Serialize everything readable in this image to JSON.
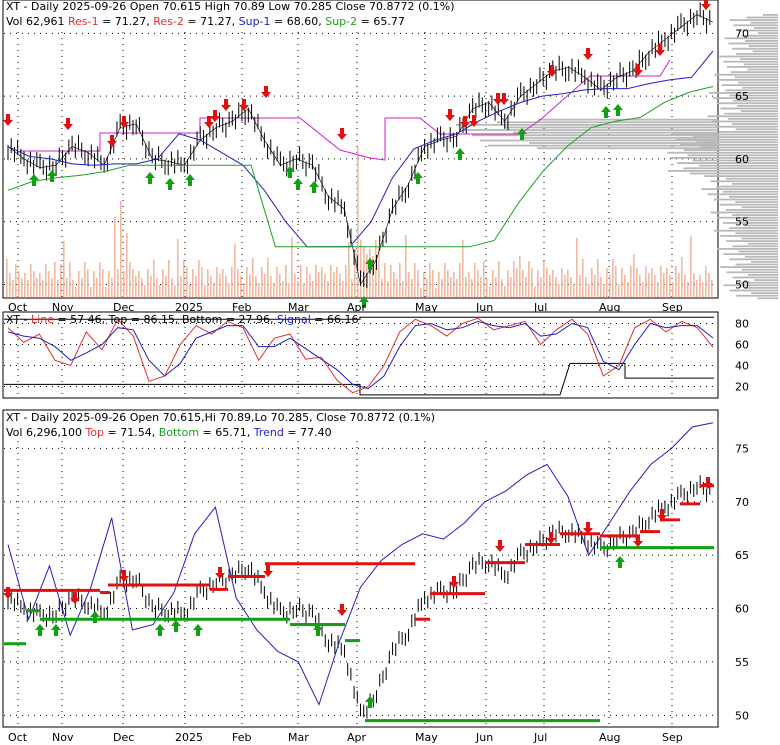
{
  "panel1": {
    "header_line1": [
      {
        "text": "XT - Daily 2025-09-26 Open 70.615  High 70.89  Low 70.285  Close 70.8772 (0.1%)",
        "color": "#000000"
      }
    ],
    "header_line2": [
      {
        "text": "Vol 62,961 ",
        "color": "#000000"
      },
      {
        "text": "Res-1",
        "color": "#e03030"
      },
      {
        "text": " = 71.27, ",
        "color": "#000000"
      },
      {
        "text": "Res-2",
        "color": "#e03030"
      },
      {
        "text": " = 71.27, ",
        "color": "#000000"
      },
      {
        "text": "Sup-1",
        "color": "#2020c0"
      },
      {
        "text": " = 68.60, ",
        "color": "#000000"
      },
      {
        "text": "Sup-2",
        "color": "#20a020"
      },
      {
        "text": " = 65.77",
        "color": "#000000"
      }
    ],
    "y_ticks": [
      "70",
      "65",
      "60",
      "55",
      "50"
    ],
    "y_values": [
      70,
      65,
      60,
      55,
      50
    ],
    "x_ticks": [
      "Oct",
      "Nov",
      "Dec",
      "2025",
      "Feb",
      "Mar",
      "Apr",
      "May",
      "Jun",
      "Jul",
      "Aug",
      "Sep"
    ]
  },
  "panel2": {
    "header": [
      {
        "text": "XT - ",
        "color": "#000000"
      },
      {
        "text": "Line",
        "color": "#e03030"
      },
      {
        "text": " = 57.46, ",
        "color": "#000000"
      },
      {
        "text": "Top",
        "color": "#000000"
      },
      {
        "text": " = 86.15, ",
        "color": "#000000"
      },
      {
        "text": "Bottom",
        "color": "#000000"
      },
      {
        "text": " = 27.96, ",
        "color": "#000000"
      },
      {
        "text": "Signal",
        "color": "#2020c0"
      },
      {
        "text": " = 66.16",
        "color": "#000000"
      }
    ],
    "y_ticks": [
      "80",
      "60",
      "40",
      "20"
    ],
    "y_values": [
      80,
      60,
      40,
      20
    ]
  },
  "panel3": {
    "header_line1": [
      {
        "text": "XT - Daily 2025-09-26 Open 70.615,Hi 70.89,Lo 70.285,  Close 70.8772 (0.1%)",
        "color": "#000000"
      }
    ],
    "header_line2": [
      {
        "text": "Vol 6,296,100 ",
        "color": "#000000"
      },
      {
        "text": "Top",
        "color": "#e03030"
      },
      {
        "text": " = 71.54, ",
        "color": "#000000"
      },
      {
        "text": "Bottom",
        "color": "#20a020"
      },
      {
        "text": " = 65.71, ",
        "color": "#000000"
      },
      {
        "text": "Trend",
        "color": "#2020c0"
      },
      {
        "text": " = 77.40",
        "color": "#000000"
      }
    ],
    "y_ticks": [
      "75",
      "70",
      "65",
      "60",
      "55",
      "50"
    ],
    "y_values": [
      75,
      70,
      65,
      60,
      55,
      50
    ],
    "x_ticks": [
      "Oct",
      "Nov",
      "Dec",
      "2025",
      "Feb",
      "Mar",
      "Apr",
      "May",
      "Jun",
      "Jul",
      "Aug",
      "Sep"
    ]
  },
  "chart_data": [
    {
      "type": "line",
      "title": "XT - Daily 2025-09-26 Open 70.615  High 70.89  Low 70.285  Close 70.8772 (0.1%)",
      "x_labels": [
        "Oct",
        "Nov",
        "Dec",
        "2025",
        "Feb",
        "Mar",
        "Apr",
        "May",
        "Jun",
        "Jul",
        "Aug",
        "Sep"
      ],
      "ylim": [
        49,
        72.5
      ],
      "grid": true,
      "series": [
        {
          "name": "Close",
          "color": "#000000",
          "values": [
            61.0,
            60.0,
            59.3,
            59.5,
            61.0,
            60.5,
            59.5,
            62.5,
            62.8,
            60.0,
            59.8,
            59.5,
            61.5,
            62.5,
            63.0,
            64.0,
            61.5,
            59.5,
            60.0,
            59.5,
            57.0,
            56.0,
            50.0,
            52.0,
            56.0,
            58.0,
            61.0,
            61.5,
            61.8,
            64.0,
            64.5,
            63.0,
            65.0,
            66.0,
            67.0,
            67.3,
            66.5,
            65.5,
            66.5,
            67.0,
            68.5,
            69.5,
            70.5,
            71.5,
            70.9
          ]
        },
        {
          "name": "Res-1",
          "color": "#e03030",
          "values": [
            71.27
          ]
        },
        {
          "name": "Res-2",
          "color": "#e03030",
          "values": [
            71.27
          ]
        },
        {
          "name": "Sup-1",
          "color": "#2020c0",
          "values": [
            61.0,
            60.2,
            60.0,
            59.6,
            59.5,
            59.6,
            59.6,
            60.0,
            62.0,
            61.5,
            60.5,
            59.5,
            57.5,
            55.0,
            53.0,
            53.0,
            53.0,
            55.0,
            58.5,
            60.8,
            61.5,
            62.0,
            63.0,
            63.8,
            64.5,
            65.0,
            65.2,
            65.5,
            65.6,
            65.6,
            66.0,
            66.3,
            66.5,
            68.6
          ]
        },
        {
          "name": "Sup-2",
          "color": "#20a020",
          "values": [
            57.5,
            58.2,
            58.5,
            58.7,
            59.0,
            59.5,
            59.5,
            59.5,
            59.5,
            59.5,
            59.5,
            53.0,
            53.0,
            53.0,
            53.0,
            53.0,
            53.0,
            53.0,
            53.0,
            53.0,
            53.5,
            56.5,
            59.0,
            61.0,
            62.5,
            63.0,
            63.3,
            64.5,
            65.3,
            65.77
          ]
        }
      ]
    },
    {
      "type": "line",
      "title": "",
      "ylim": [
        10,
        90
      ],
      "series": [
        {
          "name": "Line",
          "color": "#e03030",
          "values": [
            76,
            62,
            70,
            45,
            40,
            72,
            55,
            84,
            68,
            25,
            30,
            60,
            78,
            70,
            82,
            76,
            45,
            66,
            70,
            46,
            48,
            26,
            14,
            20,
            40,
            72,
            84,
            78,
            68,
            80,
            85,
            74,
            78,
            82,
            60,
            74,
            84,
            70,
            30,
            40,
            76,
            84,
            72,
            82,
            76,
            57.46
          ]
        },
        {
          "name": "Signal",
          "color": "#2020c0",
          "values": [
            72,
            68,
            66,
            58,
            45,
            52,
            60,
            76,
            74,
            45,
            30,
            42,
            66,
            72,
            78,
            78,
            58,
            58,
            66,
            56,
            46,
            36,
            22,
            18,
            30,
            58,
            78,
            80,
            74,
            76,
            82,
            78,
            76,
            80,
            68,
            70,
            80,
            76,
            44,
            36,
            60,
            80,
            76,
            78,
            78,
            66.16
          ]
        },
        {
          "name": "Top",
          "color": "#000000",
          "values": [
            86.15
          ]
        },
        {
          "name": "Bottom",
          "color": "#000000",
          "values": [
            27.96
          ]
        }
      ]
    },
    {
      "type": "line",
      "title": "XT - Daily 2025-09-26 Open 70.615,Hi 70.89,Lo 70.285,  Close 70.8772 (0.1%)",
      "ylim": [
        49,
        78.5
      ],
      "series": [
        {
          "name": "Close",
          "color": "#000000",
          "values": [
            61.0,
            60.0,
            59.3,
            59.5,
            61.0,
            60.5,
            59.5,
            62.5,
            62.8,
            60.0,
            59.8,
            59.5,
            61.5,
            62.5,
            63.0,
            64.0,
            61.5,
            59.5,
            60.0,
            59.5,
            57.0,
            56.0,
            50.0,
            52.0,
            56.0,
            58.0,
            61.0,
            61.5,
            61.8,
            64.0,
            64.5,
            63.0,
            65.0,
            66.0,
            67.0,
            67.3,
            66.5,
            65.5,
            66.5,
            67.0,
            68.5,
            69.5,
            70.5,
            71.5,
            70.9
          ]
        },
        {
          "name": "Top",
          "color": "#e03030",
          "values": [
            71.54
          ]
        },
        {
          "name": "Bottom",
          "color": "#20a020",
          "values": [
            65.71
          ]
        },
        {
          "name": "Trend",
          "color": "#2020c0",
          "values": [
            66.0,
            59.0,
            64.0,
            57.5,
            62.0,
            68.5,
            58.0,
            58.5,
            61.5,
            67.0,
            69.5,
            61.0,
            58.0,
            56.0,
            55.0,
            51.0,
            57.0,
            62.0,
            64.5,
            66.0,
            67.0,
            66.5,
            68.0,
            70.0,
            71.0,
            72.5,
            73.5,
            70.5,
            65.0,
            68.0,
            71.0,
            73.5,
            75.0,
            77.0,
            77.4
          ]
        }
      ]
    }
  ]
}
